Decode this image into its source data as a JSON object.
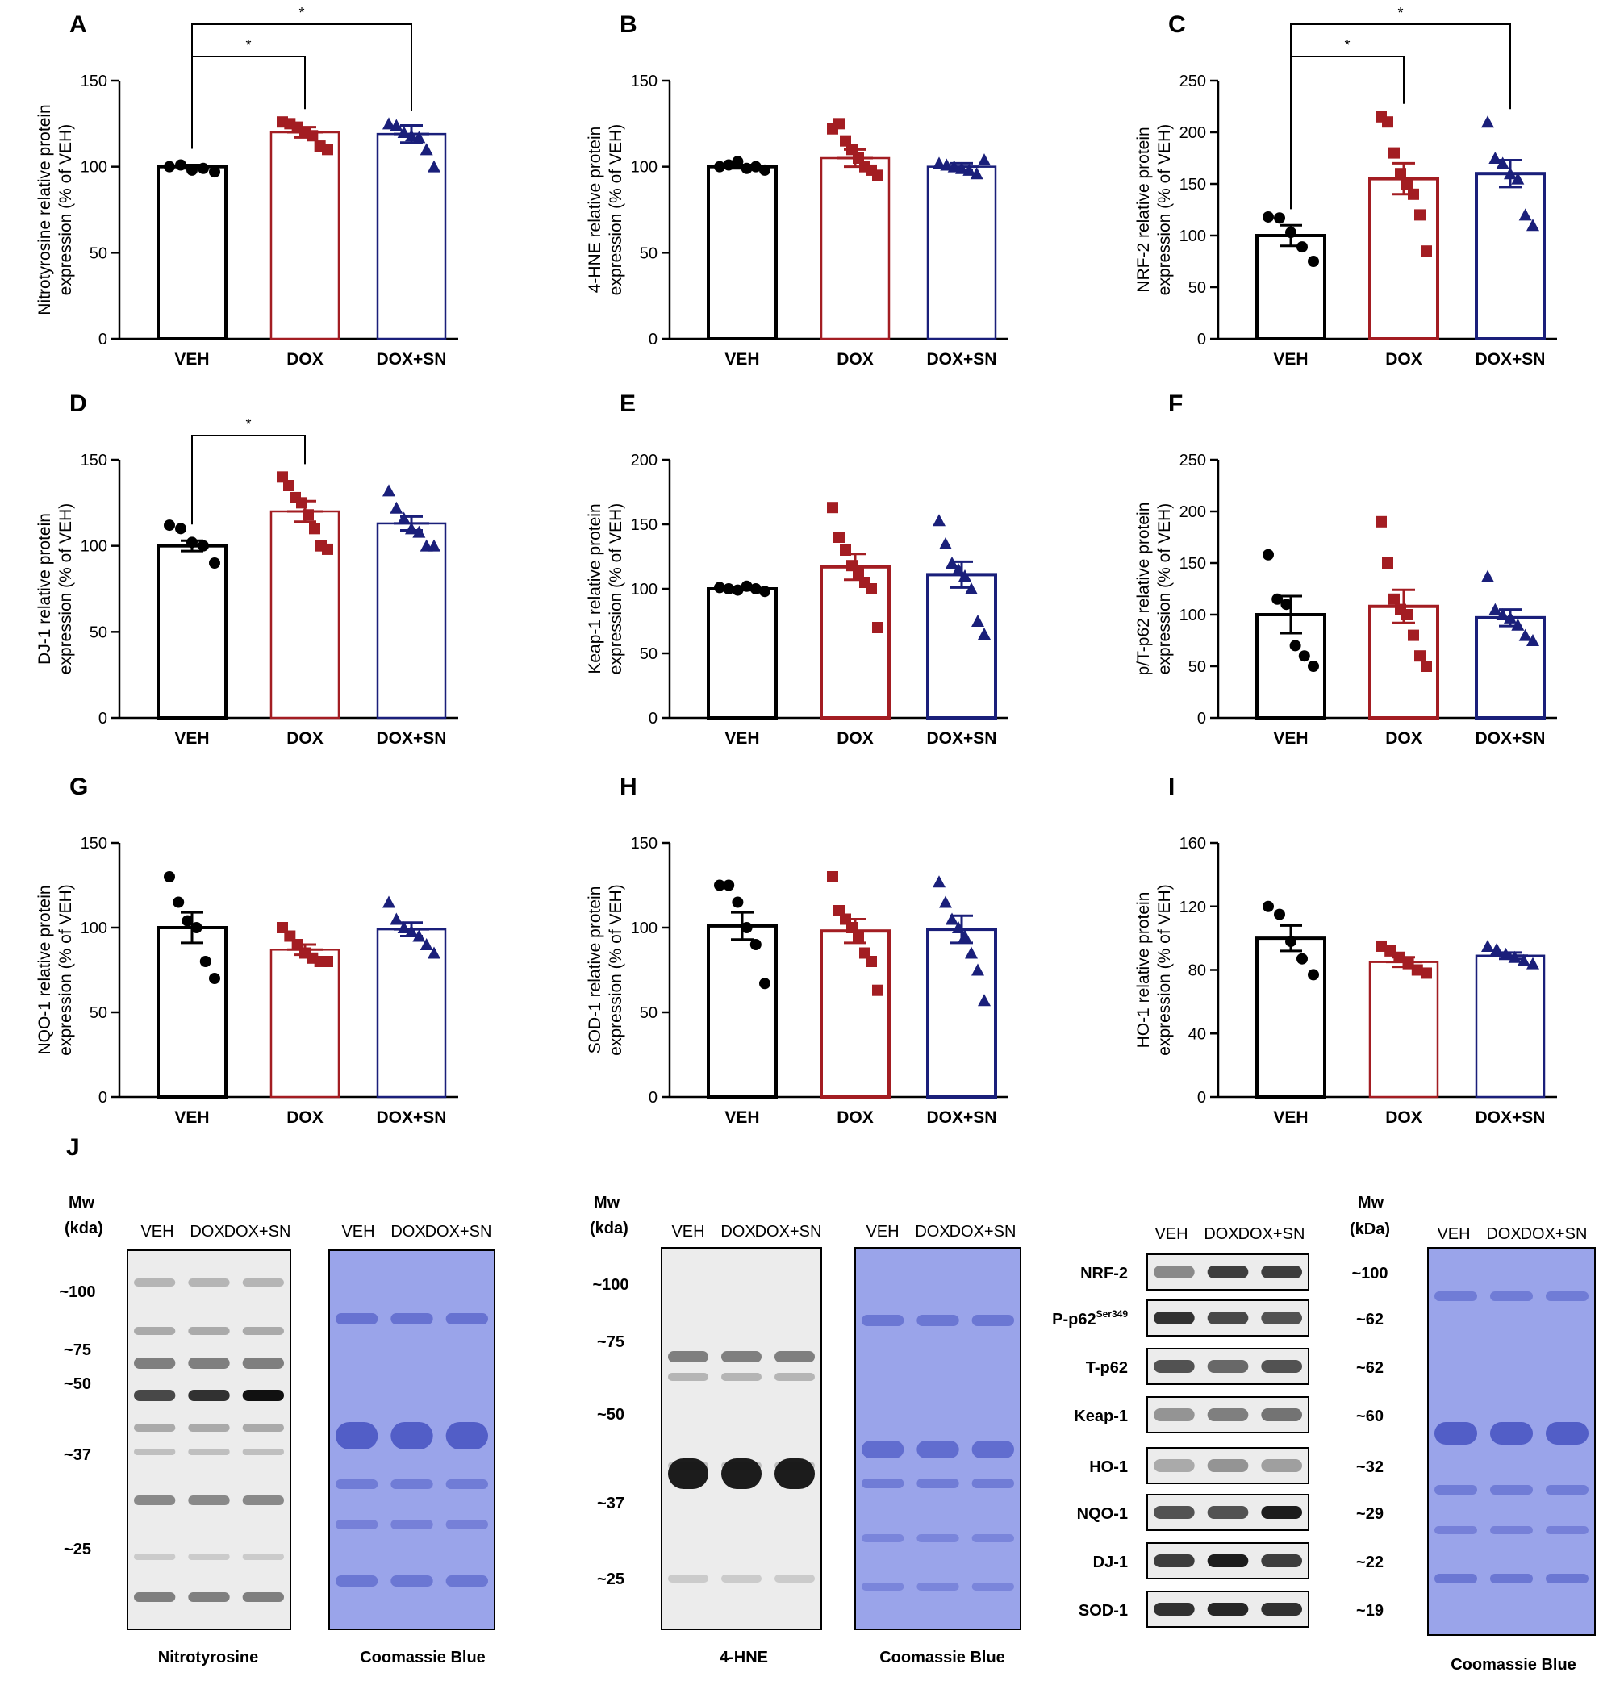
{
  "colors": {
    "veh": "#000000",
    "dox": "#a31d22",
    "doxsn": "#1a1f7a",
    "coomassie": "#5566d8"
  },
  "chart_data": [
    {
      "id": "A",
      "type": "bar",
      "panel_label": "A",
      "ylabel": "Nitrotyrosine relative protein\nexpression (% of VEH)",
      "ylim": [
        0,
        150
      ],
      "yticks": [
        "0",
        "50",
        "100",
        "150"
      ],
      "categories": [
        "VEH",
        "DOX",
        "DOX+SN"
      ],
      "values": [
        100,
        120,
        119
      ],
      "sem": [
        1,
        3,
        5
      ],
      "points": [
        [
          100,
          101,
          98,
          99,
          97
        ],
        [
          126,
          125,
          123,
          120,
          118,
          112,
          110
        ],
        [
          125,
          124,
          120,
          118,
          117,
          110,
          100
        ]
      ],
      "significance": [
        {
          "label": "*",
          "from": 0,
          "to": 1
        },
        {
          "label": "*",
          "from": 0,
          "to": 2
        }
      ]
    },
    {
      "id": "B",
      "type": "bar",
      "panel_label": "B",
      "ylabel": "4-HNE relative protein\nexpression (% of VEH)",
      "ylim": [
        0,
        150
      ],
      "yticks": [
        "0",
        "50",
        "100",
        "150"
      ],
      "categories": [
        "VEH",
        "DOX",
        "DOX+SN"
      ],
      "values": [
        100,
        105,
        100
      ],
      "sem": [
        1,
        5,
        2
      ],
      "points": [
        [
          100,
          101,
          103,
          99,
          100,
          98
        ],
        [
          122,
          125,
          115,
          110,
          105,
          100,
          98,
          95
        ],
        [
          102,
          101,
          100,
          99,
          98,
          96,
          104
        ]
      ],
      "significance": []
    },
    {
      "id": "C",
      "type": "bar",
      "panel_label": "C",
      "ylabel": "NRF-2 relative protein\nexpression (% of VEH)",
      "ylim": [
        0,
        250
      ],
      "yticks": [
        "0",
        "50",
        "100",
        "150",
        "200",
        "250"
      ],
      "categories": [
        "VEH",
        "DOX",
        "DOX+SN"
      ],
      "values": [
        100,
        155,
        160
      ],
      "sem": [
        10,
        15,
        13
      ],
      "points": [
        [
          118,
          117,
          103,
          89,
          75
        ],
        [
          215,
          210,
          180,
          160,
          150,
          140,
          120,
          85
        ],
        [
          210,
          175,
          170,
          160,
          155,
          120,
          110
        ]
      ],
      "significance": [
        {
          "label": "*",
          "from": 0,
          "to": 1
        },
        {
          "label": "*",
          "from": 0,
          "to": 2
        }
      ]
    },
    {
      "id": "D",
      "type": "bar",
      "panel_label": "D",
      "ylabel": "DJ-1 relative protein\nexpression (% of VEH)",
      "ylim": [
        0,
        150
      ],
      "yticks": [
        "0",
        "50",
        "100",
        "150"
      ],
      "categories": [
        "VEH",
        "DOX",
        "DOX+SN"
      ],
      "values": [
        100,
        120,
        113
      ],
      "sem": [
        3,
        6,
        4
      ],
      "points": [
        [
          112,
          110,
          102,
          100,
          90
        ],
        [
          140,
          135,
          128,
          125,
          118,
          110,
          100,
          98
        ],
        [
          132,
          122,
          116,
          110,
          108,
          100,
          100
        ]
      ],
      "significance": [
        {
          "label": "*",
          "from": 0,
          "to": 1
        }
      ]
    },
    {
      "id": "E",
      "type": "bar",
      "panel_label": "E",
      "ylabel": "Keap-1 relative protein\nexpression (% of VEH)",
      "ylim": [
        0,
        200
      ],
      "yticks": [
        "0",
        "50",
        "100",
        "150",
        "200"
      ],
      "categories": [
        "VEH",
        "DOX",
        "DOX+SN"
      ],
      "values": [
        100,
        117,
        111
      ],
      "sem": [
        1,
        10,
        10
      ],
      "points": [
        [
          101,
          100,
          99,
          102,
          100,
          98
        ],
        [
          163,
          140,
          130,
          118,
          112,
          105,
          100,
          70
        ],
        [
          153,
          135,
          120,
          115,
          110,
          100,
          75,
          65
        ]
      ],
      "significance": []
    },
    {
      "id": "F",
      "type": "bar",
      "panel_label": "F",
      "ylabel": "p/T-p62 relative protein\nexpression (% of VEH)",
      "ylim": [
        0,
        250
      ],
      "yticks": [
        "0",
        "50",
        "100",
        "150",
        "200",
        "250"
      ],
      "categories": [
        "VEH",
        "DOX",
        "DOX+SN"
      ],
      "values": [
        100,
        108,
        97
      ],
      "sem": [
        18,
        16,
        8
      ],
      "points": [
        [
          158,
          115,
          110,
          70,
          60,
          50
        ],
        [
          190,
          150,
          115,
          105,
          100,
          80,
          60,
          50
        ],
        [
          137,
          105,
          100,
          97,
          90,
          80,
          75
        ]
      ],
      "significance": []
    },
    {
      "id": "G",
      "type": "bar",
      "panel_label": "G",
      "ylabel": "NQO-1 relative protein\nexpression (% of VEH)",
      "ylim": [
        0,
        150
      ],
      "yticks": [
        "0",
        "50",
        "100",
        "150"
      ],
      "categories": [
        "VEH",
        "DOX",
        "DOX+SN"
      ],
      "values": [
        100,
        87,
        99
      ],
      "sem": [
        9,
        3,
        4
      ],
      "points": [
        [
          130,
          115,
          104,
          100,
          80,
          70
        ],
        [
          100,
          95,
          90,
          85,
          82,
          80,
          80
        ],
        [
          115,
          105,
          100,
          98,
          95,
          90,
          85
        ]
      ],
      "significance": []
    },
    {
      "id": "H",
      "type": "bar",
      "panel_label": "H",
      "ylabel": "SOD-1 relative protein\nexpression (% of VEH)",
      "ylim": [
        0,
        150
      ],
      "yticks": [
        "0",
        "50",
        "100",
        "150"
      ],
      "categories": [
        "VEH",
        "DOX",
        "DOX+SN"
      ],
      "values": [
        101,
        98,
        99
      ],
      "sem": [
        8,
        7,
        8
      ],
      "points": [
        [
          125,
          125,
          115,
          100,
          90,
          67
        ],
        [
          130,
          110,
          105,
          100,
          95,
          85,
          80,
          63
        ],
        [
          127,
          115,
          105,
          100,
          95,
          85,
          75,
          57
        ]
      ],
      "significance": []
    },
    {
      "id": "I",
      "type": "bar",
      "panel_label": "I",
      "ylabel": "HO-1 relative protein\nexpression (% of VEH)",
      "ylim": [
        0,
        160
      ],
      "yticks": [
        "0",
        "40",
        "80",
        "120",
        "160"
      ],
      "categories": [
        "VEH",
        "DOX",
        "DOX+SN"
      ],
      "values": [
        100,
        85,
        89
      ],
      "sem": [
        8,
        3,
        2
      ],
      "points": [
        [
          120,
          115,
          98,
          87,
          77
        ],
        [
          95,
          92,
          88,
          84,
          80,
          78
        ],
        [
          95,
          93,
          90,
          88,
          86,
          84
        ]
      ],
      "significance": []
    }
  ],
  "blots": {
    "panel_label": "J",
    "mw_header": [
      "Mw",
      "(kda)"
    ],
    "mw_header_c": [
      "Mw",
      "(kDa)"
    ],
    "lanes": [
      "VEH",
      "DOX",
      "DOX+SN"
    ],
    "nitro": {
      "markers": [
        "~100",
        "~75",
        "~50",
        "~37",
        "~25"
      ],
      "caption": "Nitrotyrosine"
    },
    "hne": {
      "markers": [
        "~100",
        "~75",
        "~50",
        "~37",
        "~25"
      ],
      "caption": "4-HNE"
    },
    "coomassie_caption": "Coomassie Blue",
    "proteins": [
      "NRF-2",
      "P-p62",
      "T-p62",
      "Keap-1",
      "HO-1",
      "NQO-1",
      "DJ-1",
      "SOD-1"
    ],
    "p62_superscript": "Ser349",
    "protein_mw": [
      "~100",
      "~62",
      "~62",
      "~60",
      "~32",
      "~29",
      "~22",
      "~19"
    ]
  }
}
